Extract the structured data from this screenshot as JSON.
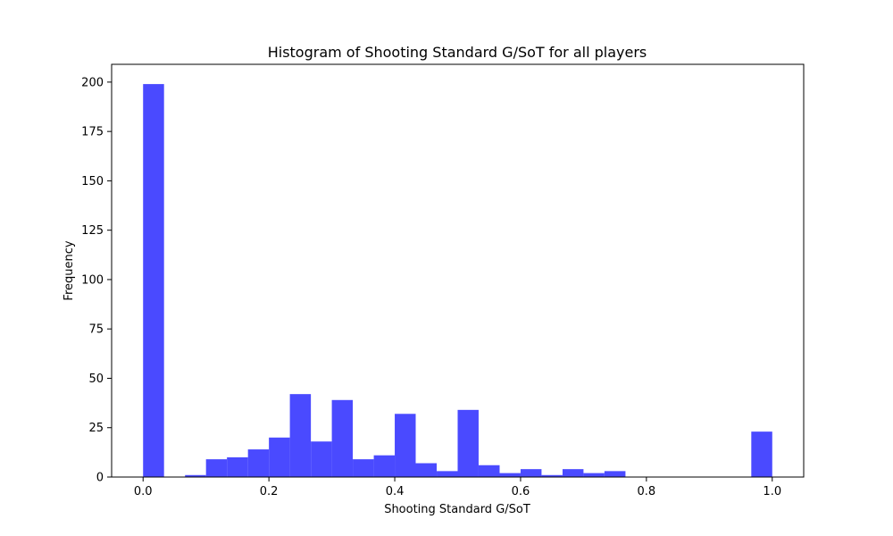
{
  "chart_data": {
    "type": "bar",
    "title": "Histogram of Shooting Standard G/SoT for all players",
    "xlabel": "Shooting Standard G/SoT",
    "ylabel": "Frequency",
    "xlim": [
      -0.05,
      1.05
    ],
    "ylim": [
      0,
      209
    ],
    "xticks": [
      0.0,
      0.2,
      0.4,
      0.6,
      0.8,
      1.0
    ],
    "xtick_labels": [
      "0.0",
      "0.2",
      "0.4",
      "0.6",
      "0.8",
      "1.0"
    ],
    "yticks": [
      0,
      25,
      50,
      75,
      100,
      125,
      150,
      175,
      200
    ],
    "ytick_labels": [
      "0",
      "25",
      "50",
      "75",
      "100",
      "125",
      "150",
      "175",
      "200"
    ],
    "grid": false,
    "bar_color": "#4a4aff",
    "bin_edges": [
      0.0,
      0.0333,
      0.0667,
      0.1,
      0.1333,
      0.1667,
      0.2,
      0.2333,
      0.2667,
      0.3,
      0.3333,
      0.3667,
      0.4,
      0.4333,
      0.4667,
      0.5,
      0.5333,
      0.5667,
      0.6,
      0.6333,
      0.6667,
      0.7,
      0.7333,
      0.7667,
      0.8,
      0.8333,
      0.8667,
      0.9,
      0.9333,
      0.9667,
      1.0
    ],
    "values": [
      199,
      0,
      1,
      9,
      10,
      14,
      20,
      42,
      18,
      39,
      9,
      11,
      32,
      7,
      3,
      34,
      6,
      2,
      4,
      1,
      4,
      2,
      3,
      0,
      0,
      0,
      0,
      0,
      0,
      23
    ]
  }
}
